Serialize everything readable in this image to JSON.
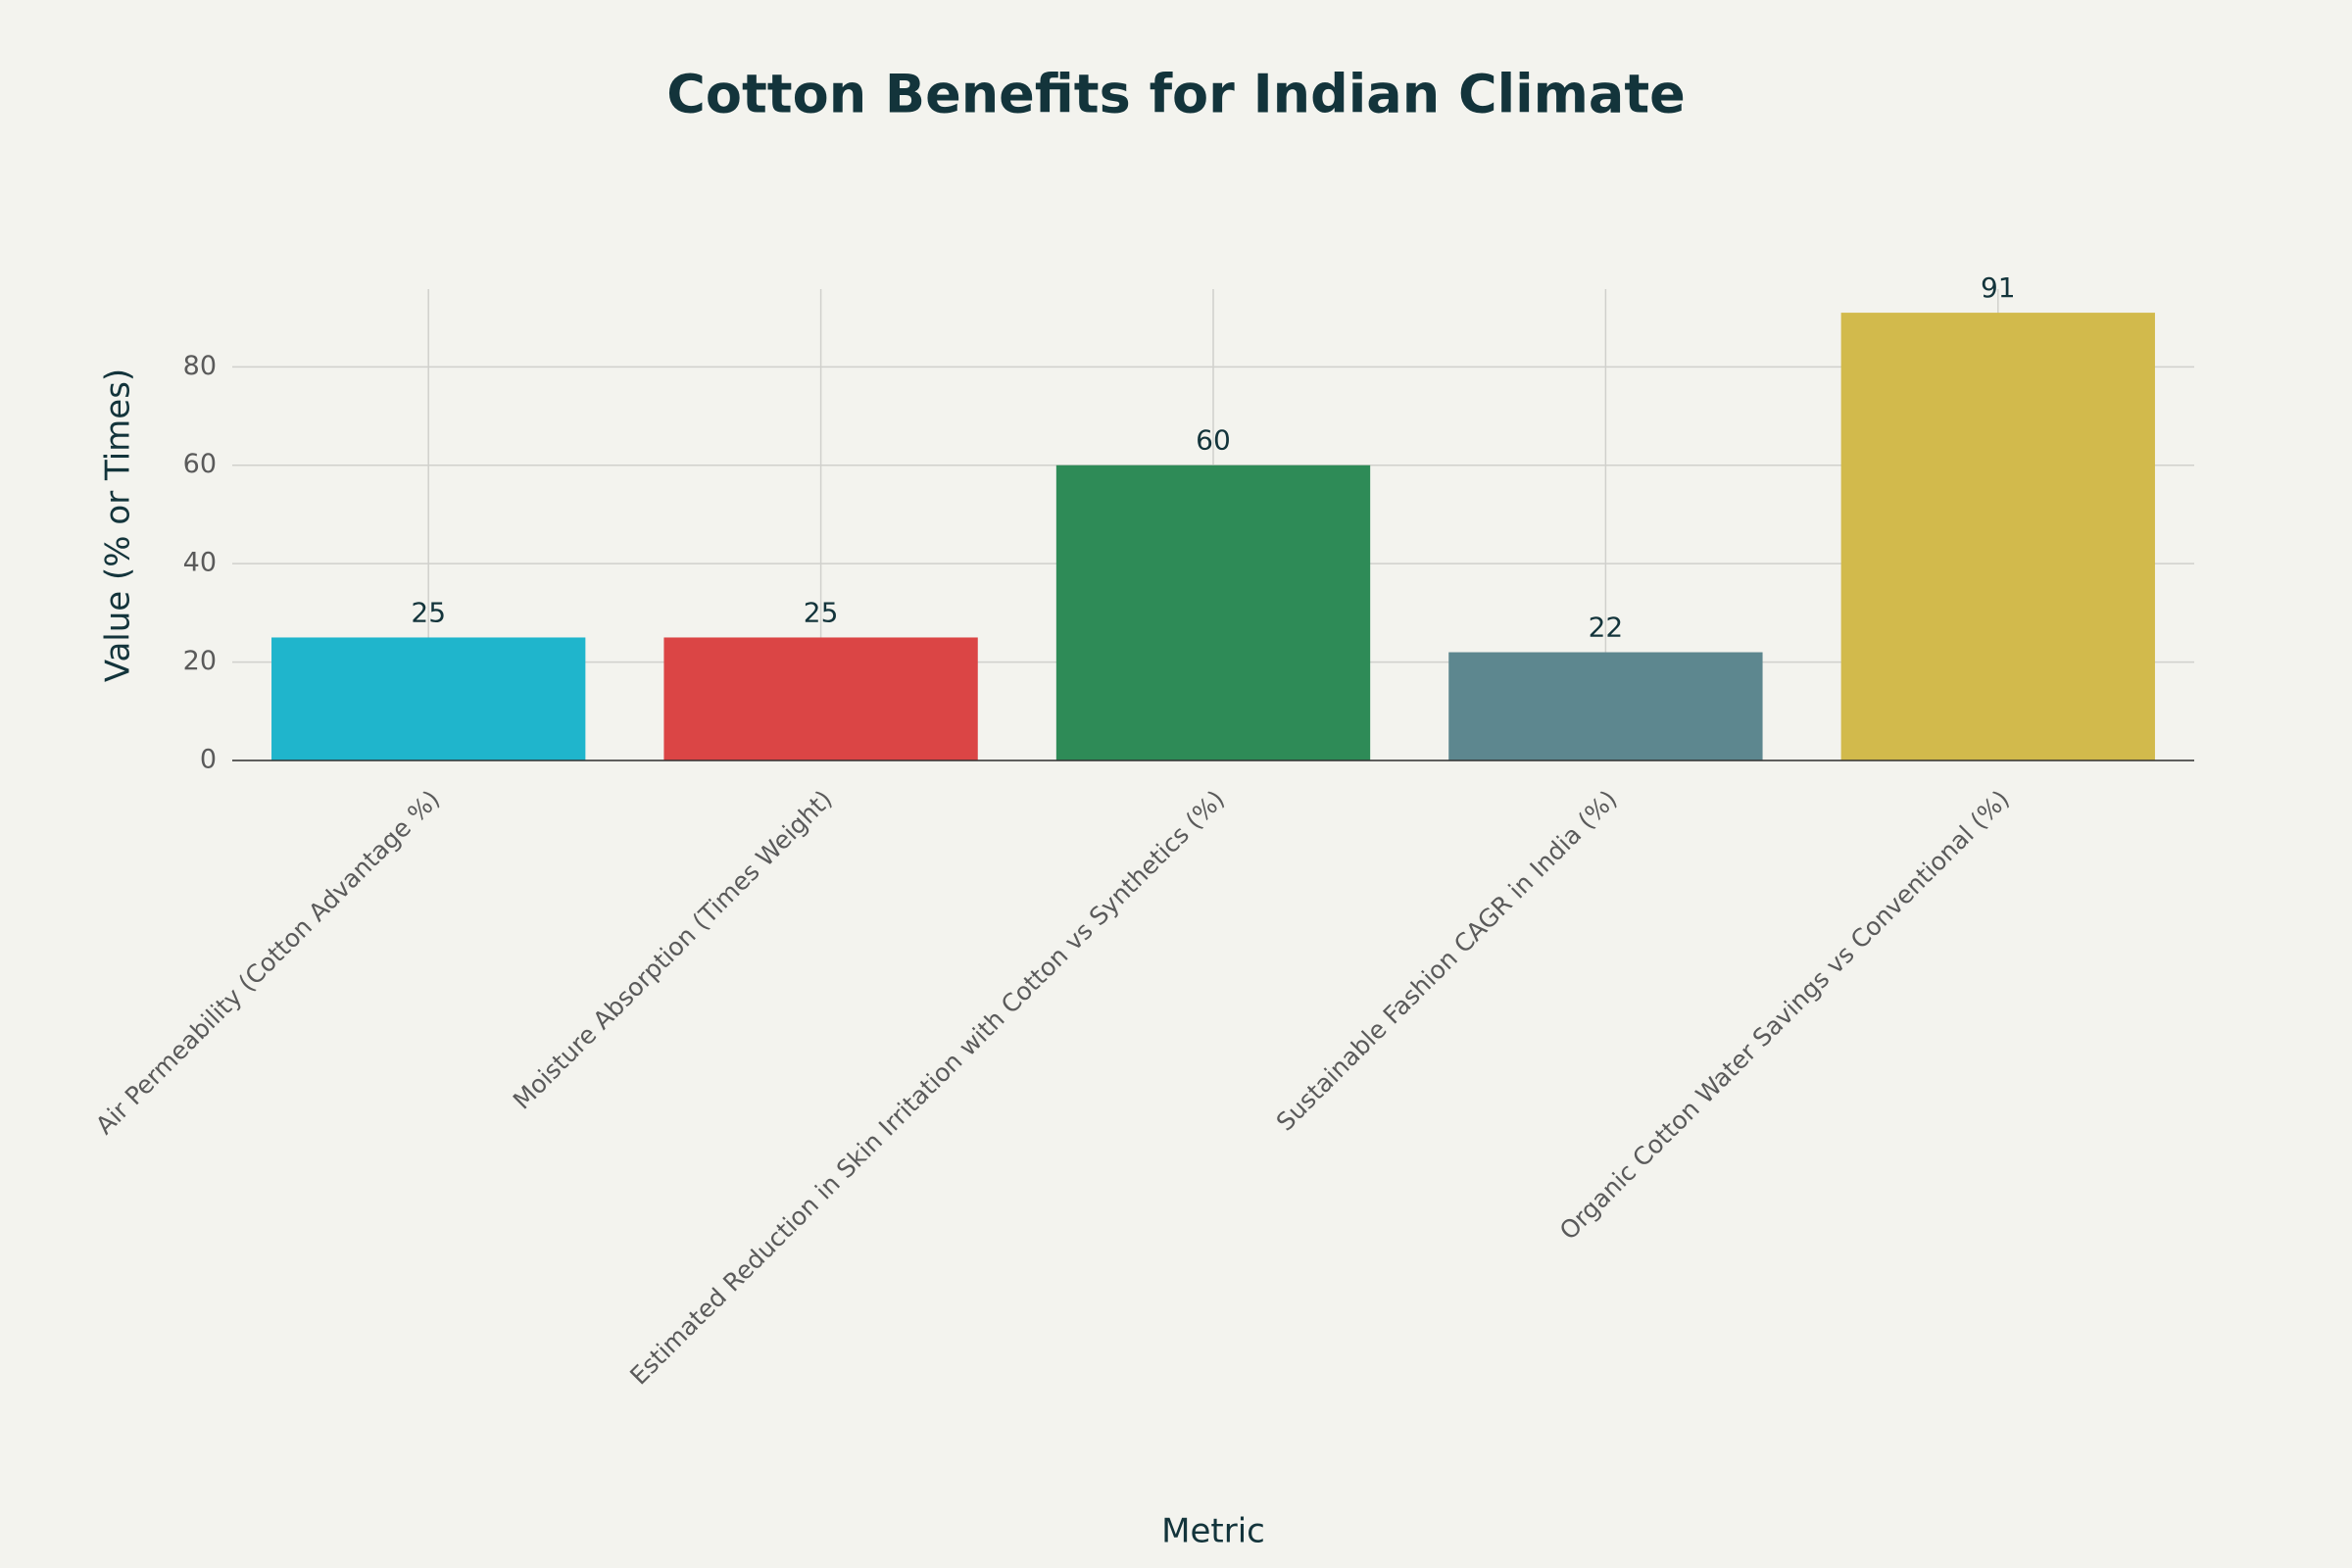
{
  "chart_data": {
    "type": "bar",
    "title": "Cotton Benefits for Indian Climate",
    "x_label": "Metric",
    "y_label": "Value (% or Times)",
    "categories": [
      "Air Permeability (Cotton Advantage %)",
      "Moisture Absorption (Times Weight)",
      "Estimated Reduction in Skin Irritation with Cotton vs Synthetics (%)",
      "Sustainable Fashion CAGR in India (%)",
      "Organic Cotton Water Savings vs Conventional (%)"
    ],
    "values": [
      25,
      25,
      60,
      22,
      91
    ],
    "colors": [
      "#1fb5cc",
      "#db4545",
      "#2e8b57",
      "#5d878f",
      "#d2ba4c"
    ],
    "ylim": [
      0,
      95.8
    ],
    "yticks": [
      0,
      20,
      40,
      60,
      80
    ],
    "grid": true,
    "x_grid": true
  }
}
